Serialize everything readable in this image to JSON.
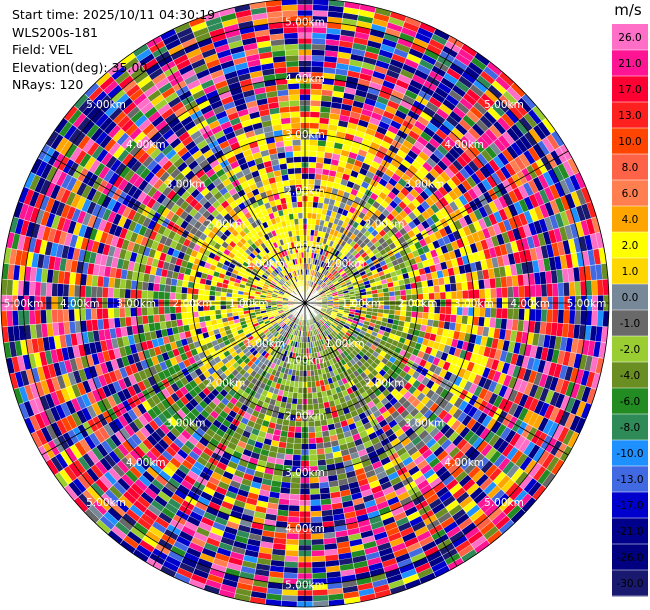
{
  "info": {
    "start_time": "Start time: 2025/10/11 04:30:19",
    "site": "WLS200s-181",
    "field": "Field: VEL",
    "elevation": "Elevation(deg): 35.00",
    "nrays": "NRays: 120"
  },
  "chart_data": {
    "type": "heatmap",
    "projection": "polar-ppi",
    "nrays": 120,
    "range_rings_km": [
      1,
      2,
      3,
      4,
      5
    ],
    "range_ring_labels": [
      "1.00km",
      "2.00km",
      "3.00km",
      "4.00km",
      "5.00km"
    ],
    "max_range_km": 5.4,
    "colorbar": {
      "unit": "m/s",
      "ticks": [
        "26.0",
        "21.0",
        "17.0",
        "13.0",
        "10.0",
        "8.0",
        "6.0",
        "4.0",
        "2.0",
        "1.0",
        "0.0",
        "-1.0",
        "-2.0",
        "-4.0",
        "-6.0",
        "-8.0",
        "-10.0",
        "-13.0",
        "-17.0",
        "-21.0",
        "-26.0",
        "-30.0"
      ],
      "bands": [
        {
          "from": 30,
          "to": 26,
          "color": "#ff6ec7"
        },
        {
          "from": 26,
          "to": 21,
          "color": "#ff1493"
        },
        {
          "from": 21,
          "to": 17,
          "color": "#ff0033"
        },
        {
          "from": 17,
          "to": 13,
          "color": "#ff2020"
        },
        {
          "from": 13,
          "to": 10,
          "color": "#ff4500"
        },
        {
          "from": 10,
          "to": 8,
          "color": "#ff6347"
        },
        {
          "from": 8,
          "to": 6,
          "color": "#ff7f50"
        },
        {
          "from": 6,
          "to": 4,
          "color": "#ffa500"
        },
        {
          "from": 4,
          "to": 2,
          "color": "#ffff00"
        },
        {
          "from": 2,
          "to": 1,
          "color": "#ffd700"
        },
        {
          "from": 1,
          "to": 0,
          "color": "#778899"
        },
        {
          "from": 0,
          "to": -1,
          "color": "#696969"
        },
        {
          "from": -1,
          "to": -2,
          "color": "#9acd32"
        },
        {
          "from": -2,
          "to": -4,
          "color": "#6b8e23"
        },
        {
          "from": -4,
          "to": -6,
          "color": "#228b22"
        },
        {
          "from": -6,
          "to": -8,
          "color": "#2e8b57"
        },
        {
          "from": -8,
          "to": -10,
          "color": "#1e90ff"
        },
        {
          "from": -10,
          "to": -13,
          "color": "#4169e1"
        },
        {
          "from": -13,
          "to": -17,
          "color": "#0000cd"
        },
        {
          "from": -17,
          "to": -21,
          "color": "#00008b"
        },
        {
          "from": -21,
          "to": -26,
          "color": "#000080"
        },
        {
          "from": -26,
          "to": -30,
          "color": "#191970"
        }
      ]
    }
  }
}
